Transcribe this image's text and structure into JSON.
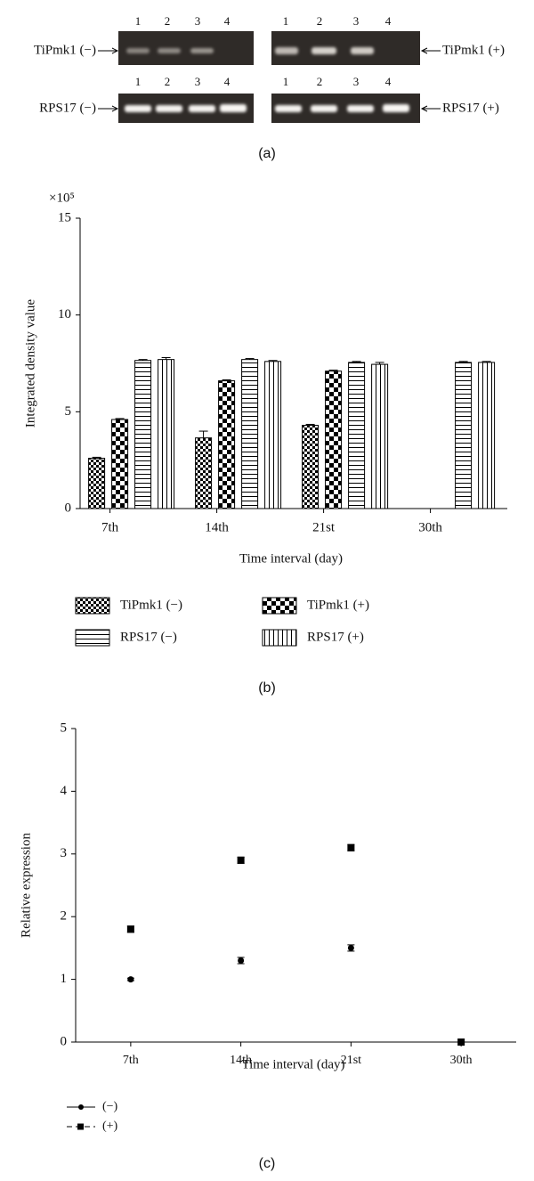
{
  "gel": {
    "lanes": [
      "1",
      "2",
      "3",
      "4"
    ],
    "rows": [
      {
        "left": "TiPmk1 (−)",
        "right": "TiPmk1 (+)"
      },
      {
        "left": "RPS17 (−)",
        "right": "RPS17 (+)"
      }
    ],
    "caption": "(a)"
  },
  "chart_data": [
    {
      "type": "bar",
      "caption": "(b)",
      "y_label": "Integrated density value",
      "y_multiplier": "×10⁵",
      "x_label": "Time interval (day)",
      "categories": [
        "7th",
        "14th",
        "21st",
        "30th"
      ],
      "ylim": [
        0,
        15
      ],
      "yticks": [
        0,
        5,
        10,
        15
      ],
      "series": [
        {
          "name": "TiPmk1 (−)",
          "pattern": "small-check",
          "values": [
            2.6,
            3.65,
            4.3,
            0
          ],
          "errors": [
            0.05,
            0.35,
            0.05,
            0
          ]
        },
        {
          "name": "TiPmk1 (+)",
          "pattern": "big-check",
          "values": [
            4.6,
            6.6,
            7.1,
            0
          ],
          "errors": [
            0.05,
            0.05,
            0.05,
            0
          ]
        },
        {
          "name": "RPS17 (−)",
          "pattern": "horizontal",
          "values": [
            7.65,
            7.7,
            7.55,
            7.55
          ],
          "errors": [
            0.05,
            0.05,
            0.05,
            0.05
          ]
        },
        {
          "name": "RPS17 (+)",
          "pattern": "vertical",
          "values": [
            7.7,
            7.6,
            7.45,
            7.55
          ],
          "errors": [
            0.1,
            0.05,
            0.1,
            0.05
          ]
        }
      ]
    },
    {
      "type": "line",
      "caption": "(c)",
      "y_label": "Relative expression",
      "x_label": "Time interval (day)",
      "categories": [
        "7th",
        "14th",
        "21st",
        "30th"
      ],
      "ylim": [
        0,
        5
      ],
      "yticks": [
        0,
        1,
        2,
        3,
        4,
        5
      ],
      "series": [
        {
          "name": "(−)",
          "color": "#000000",
          "marker": "circle",
          "dash": false,
          "values": [
            1.0,
            1.3,
            1.5,
            0
          ],
          "errors": [
            0.02,
            0.05,
            0.05,
            0
          ]
        },
        {
          "name": "(+)",
          "color": "#000000",
          "marker": "square",
          "dash": true,
          "values": [
            1.8,
            2.9,
            3.1,
            0
          ],
          "errors": [
            0.05,
            0.05,
            0.05,
            0
          ]
        }
      ]
    }
  ]
}
